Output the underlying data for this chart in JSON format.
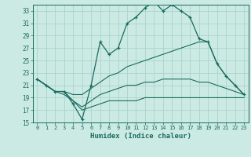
{
  "xlabel": "Humidex (Indice chaleur)",
  "bg_color": "#cceae4",
  "grid_color": "#aad4cc",
  "line_color": "#1a6b60",
  "xlim": [
    -0.5,
    23.5
  ],
  "ylim": [
    15,
    34
  ],
  "xticks": [
    0,
    1,
    2,
    3,
    4,
    5,
    6,
    7,
    8,
    9,
    10,
    11,
    12,
    13,
    14,
    15,
    16,
    17,
    18,
    19,
    20,
    21,
    22,
    23
  ],
  "yticks": [
    15,
    17,
    19,
    21,
    23,
    25,
    27,
    29,
    31,
    33
  ],
  "lines": [
    {
      "x": [
        0,
        1,
        2,
        3,
        4,
        5,
        6,
        7,
        8,
        9,
        10,
        11,
        12,
        13,
        14,
        15,
        16,
        17,
        18,
        19,
        20,
        21,
        22,
        23
      ],
      "y": [
        22,
        21,
        20,
        20,
        18,
        15.5,
        21,
        28,
        26,
        27,
        31,
        32,
        33.5,
        34.5,
        33,
        34,
        33,
        32,
        28.5,
        28,
        24.5,
        22.5,
        21,
        19.5
      ],
      "marker": true
    },
    {
      "x": [
        0,
        1,
        2,
        3,
        4,
        5,
        6,
        7,
        8,
        9,
        10,
        11,
        12,
        13,
        14,
        15,
        16,
        17,
        18,
        19,
        20,
        21,
        22,
        23
      ],
      "y": [
        22,
        21,
        20,
        20,
        19.5,
        19.5,
        20.5,
        21.5,
        22.5,
        23,
        24,
        24.5,
        25,
        25.5,
        26,
        26.5,
        27,
        27.5,
        28,
        28,
        24.5,
        22.5,
        21,
        19.5
      ],
      "marker": false
    },
    {
      "x": [
        0,
        1,
        2,
        3,
        4,
        5,
        6,
        7,
        8,
        9,
        10,
        11,
        12,
        13,
        14,
        15,
        16,
        17,
        18,
        19,
        20,
        21,
        22,
        23
      ],
      "y": [
        22,
        21,
        20,
        20,
        18.5,
        17.5,
        18.5,
        19.5,
        20,
        20.5,
        21,
        21,
        21.5,
        21.5,
        22,
        22,
        22,
        22,
        21.5,
        21.5,
        21,
        20.5,
        20,
        19.5
      ],
      "marker": false
    },
    {
      "x": [
        0,
        1,
        2,
        3,
        4,
        5,
        6,
        7,
        8,
        9,
        10,
        11,
        12,
        13,
        14,
        15,
        16,
        17,
        18,
        19,
        20,
        21,
        22,
        23
      ],
      "y": [
        22,
        21,
        20,
        19.5,
        18.5,
        17,
        17.5,
        18,
        18.5,
        18.5,
        18.5,
        18.5,
        19,
        19,
        19,
        19,
        19,
        19,
        19,
        19,
        19,
        19,
        19,
        19
      ],
      "marker": false
    }
  ]
}
